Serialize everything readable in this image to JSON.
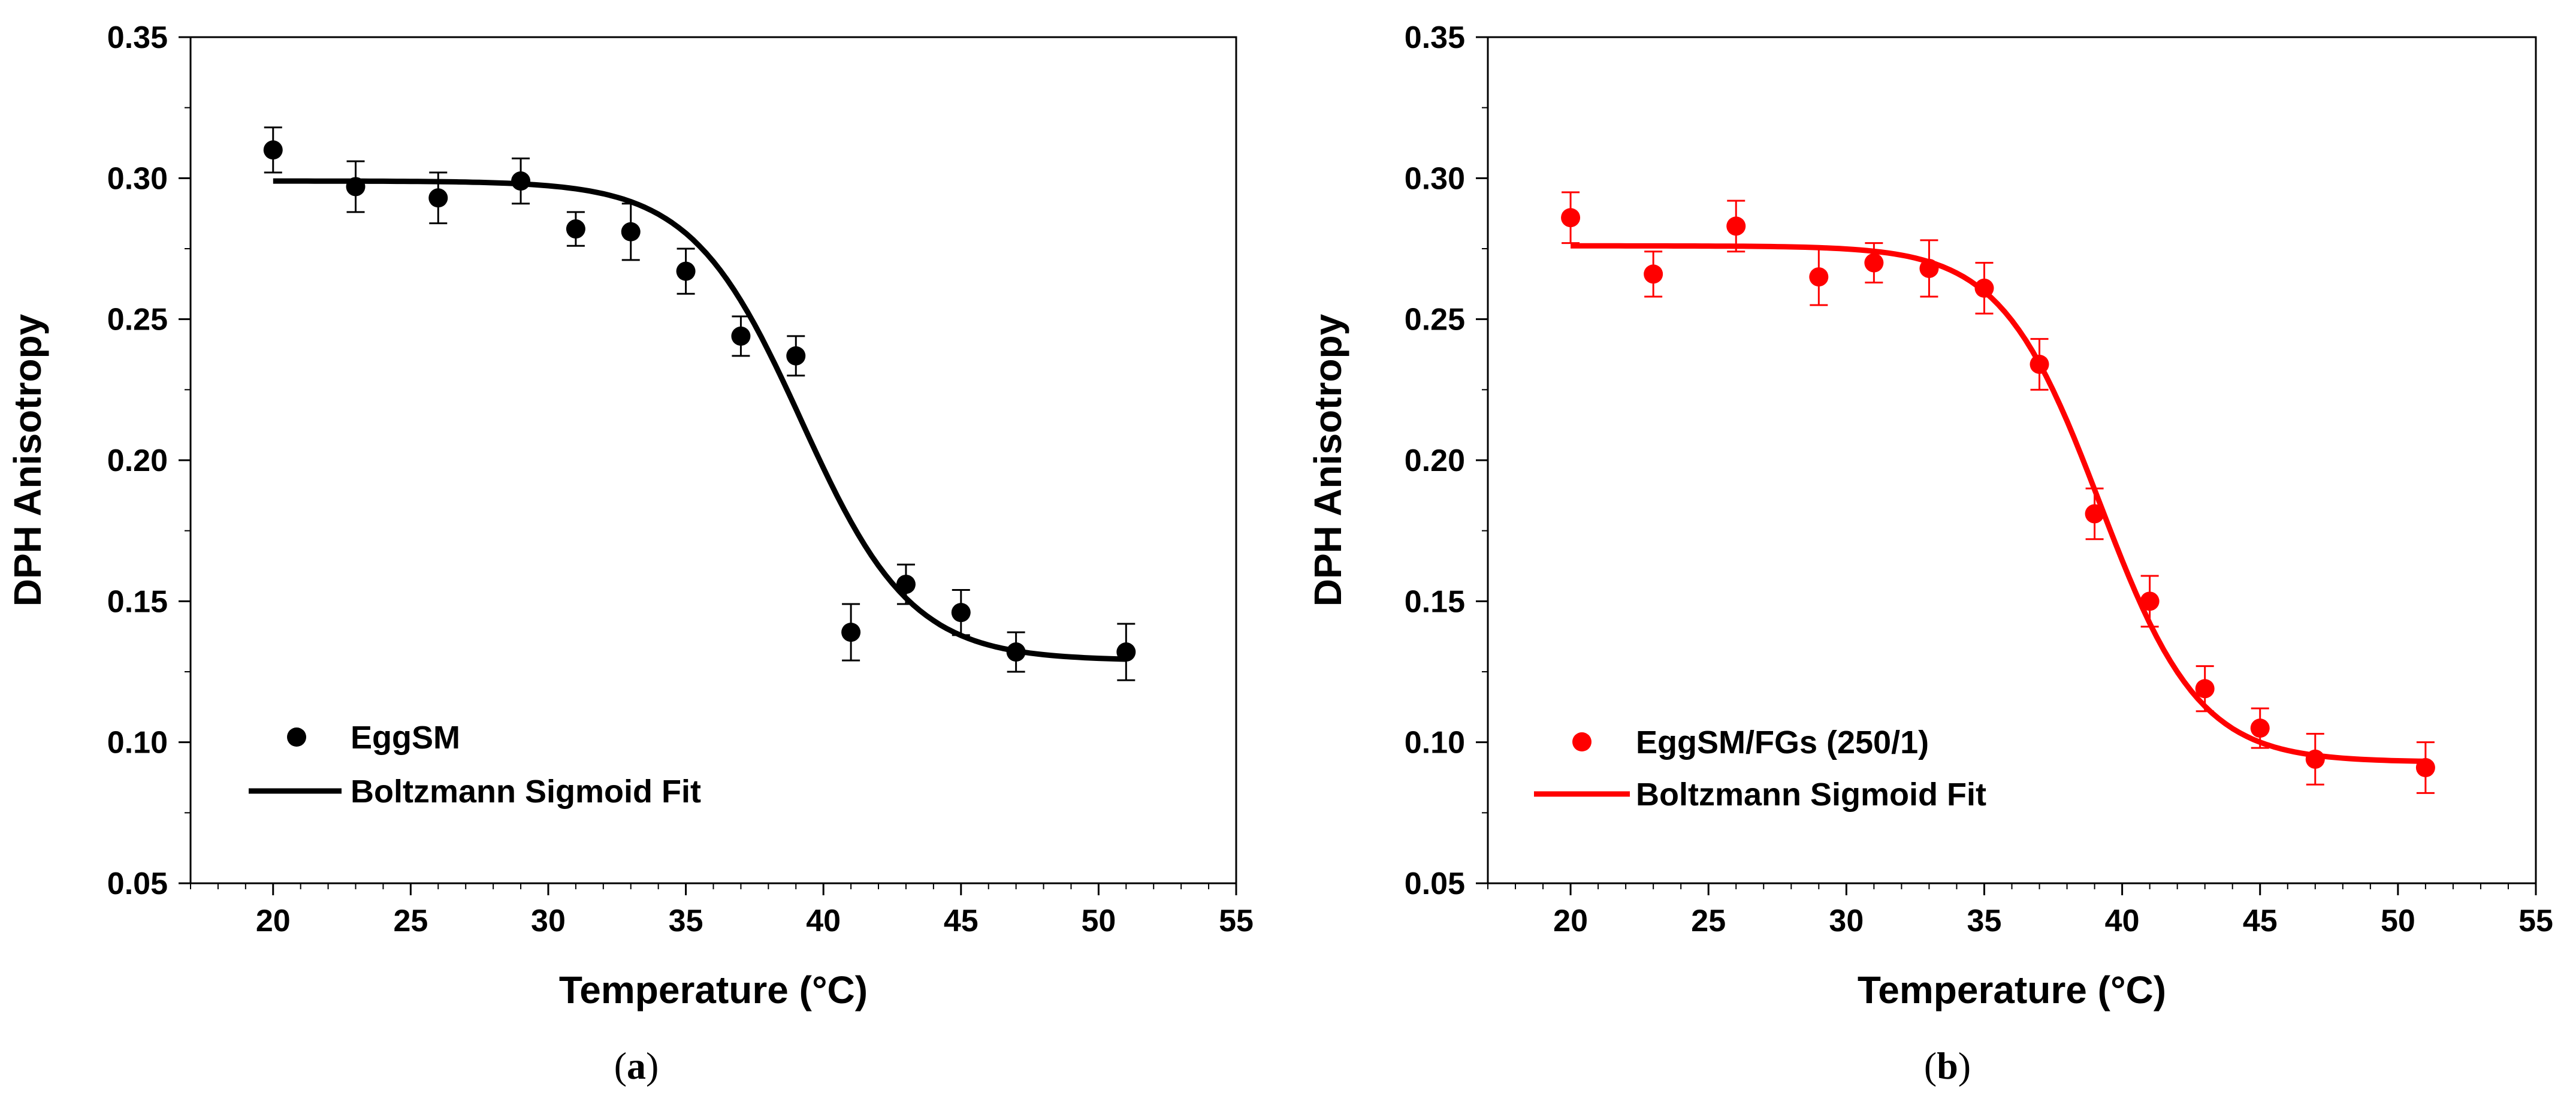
{
  "chart_data": [
    {
      "id": "a",
      "type": "scatter",
      "caption": {
        "open": "(",
        "letter": "a",
        "close": ")"
      },
      "xlabel": "Temperature (°C)",
      "ylabel": "DPH Anisotropy",
      "xlim": [
        17,
        55
      ],
      "ylim": [
        0.05,
        0.35
      ],
      "xticks": [
        20,
        25,
        30,
        35,
        40,
        45,
        50,
        55
      ],
      "yticks": [
        "0.05",
        "0.10",
        "0.15",
        "0.20",
        "0.25",
        "0.30",
        "0.35"
      ],
      "color": "#000000",
      "series": [
        {
          "name": "EggSM",
          "x": [
            20,
            23,
            26,
            29,
            31,
            33,
            35,
            37,
            39,
            41,
            43,
            45,
            47,
            51
          ],
          "y": [
            0.31,
            0.297,
            0.293,
            0.299,
            0.282,
            0.281,
            0.267,
            0.244,
            0.237,
            0.139,
            0.156,
            0.146,
            0.132,
            0.132
          ],
          "err": [
            0.008,
            0.009,
            0.009,
            0.008,
            0.006,
            0.01,
            0.008,
            0.007,
            0.007,
            0.01,
            0.007,
            0.008,
            0.007,
            0.01
          ]
        }
      ],
      "fit": {
        "name": "Boltzmann Sigmoid Fit",
        "model": "boltzmann",
        "A1": 0.299,
        "A2": 0.129,
        "x0": 39.2,
        "dx": 2.0,
        "x_range": [
          20,
          51
        ]
      },
      "legend_position": "bottom-left"
    },
    {
      "id": "b",
      "type": "scatter",
      "caption": {
        "open": "(",
        "letter": "b",
        "close": ")"
      },
      "xlabel": "Temperature (°C)",
      "ylabel": "DPH Anisotropy",
      "xlim": [
        17,
        55
      ],
      "ylim": [
        0.05,
        0.35
      ],
      "xticks": [
        20,
        25,
        30,
        35,
        40,
        45,
        50,
        55
      ],
      "yticks": [
        "0.05",
        "0.10",
        "0.15",
        "0.20",
        "0.25",
        "0.30",
        "0.35"
      ],
      "color": "#ff0000",
      "series": [
        {
          "name": "EggSM/FGs (250/1)",
          "x": [
            20,
            23,
            26,
            29,
            31,
            33,
            35,
            37,
            39,
            41,
            43,
            45,
            47,
            51
          ],
          "y": [
            0.286,
            0.266,
            0.283,
            0.265,
            0.27,
            0.268,
            0.261,
            0.234,
            0.181,
            0.15,
            0.119,
            0.105,
            0.094,
            0.091
          ],
          "err": [
            0.009,
            0.008,
            0.009,
            0.01,
            0.007,
            0.01,
            0.009,
            0.009,
            0.009,
            0.009,
            0.008,
            0.007,
            0.009,
            0.009
          ]
        }
      ],
      "fit": {
        "name": "Boltzmann Sigmoid Fit",
        "model": "boltzmann",
        "A1": 0.276,
        "A2": 0.093,
        "x0": 39.2,
        "dx": 1.8,
        "x_range": [
          20,
          51
        ]
      },
      "legend_position": "bottom-left"
    }
  ]
}
